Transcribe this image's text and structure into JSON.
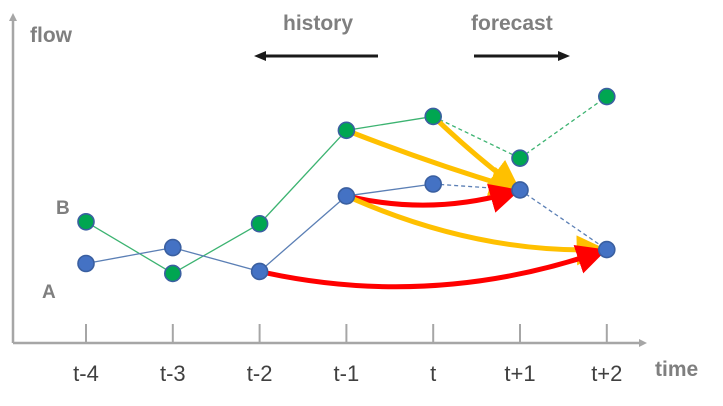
{
  "labels": {
    "y_axis": "flow",
    "x_axis": "time",
    "history": "history",
    "forecast": "forecast",
    "series_b": "B",
    "series_a": "A"
  },
  "chart_data": {
    "type": "line",
    "categories": [
      "t-4",
      "t-3",
      "t-2",
      "t-1",
      "t",
      "t+1",
      "t+2"
    ],
    "history_steps": [
      "t-4",
      "t-3",
      "t-2",
      "t-1",
      "t"
    ],
    "forecast_steps": [
      "t+1",
      "t+2"
    ],
    "series": [
      {
        "name": "B",
        "values": [
          6.1,
          3.5,
          6.0,
          10.7,
          11.4,
          9.3,
          12.4
        ]
      },
      {
        "name": "A",
        "values": [
          4.0,
          4.8,
          3.6,
          7.4,
          8.0,
          7.7,
          4.7
        ]
      }
    ],
    "ylim": [
      0,
      16
    ],
    "grid": false,
    "influence_arrows": [
      {
        "from": {
          "series": "B",
          "step": "t-1"
        },
        "to": {
          "series": "A",
          "step": "t+1"
        }
      },
      {
        "from": {
          "series": "B",
          "step": "t"
        },
        "to": {
          "series": "A",
          "step": "t+1"
        }
      },
      {
        "from": {
          "series": "A",
          "step": "t-1"
        },
        "to": {
          "series": "A",
          "step": "t+1"
        }
      },
      {
        "from": {
          "series": "A",
          "step": "t-1"
        },
        "to": {
          "series": "A",
          "step": "t+2"
        }
      },
      {
        "from": {
          "series": "A",
          "step": "t-2"
        },
        "to": {
          "series": "A",
          "step": "t+2"
        }
      }
    ]
  },
  "colors": {
    "series_b_fill": "#00a651",
    "series_b_line": "#3cb371",
    "series_a_fill": "#4472c4",
    "series_a_line": "#5b7fb5",
    "orange_arrow": "#ffc000",
    "red_arrow": "#ff0000",
    "axis": "#a6a6a6",
    "label_gray": "#7f7f7f",
    "tick_text": "#404040",
    "marker_stroke": "#3a5fa0",
    "direction_arrow": "#1a1a1a"
  }
}
